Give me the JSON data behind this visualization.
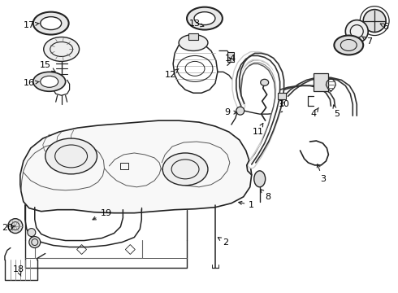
{
  "bg_color": "#ffffff",
  "line_color": "#222222",
  "text_color": "#000000",
  "fig_width": 4.9,
  "fig_height": 3.6,
  "dpi": 100
}
